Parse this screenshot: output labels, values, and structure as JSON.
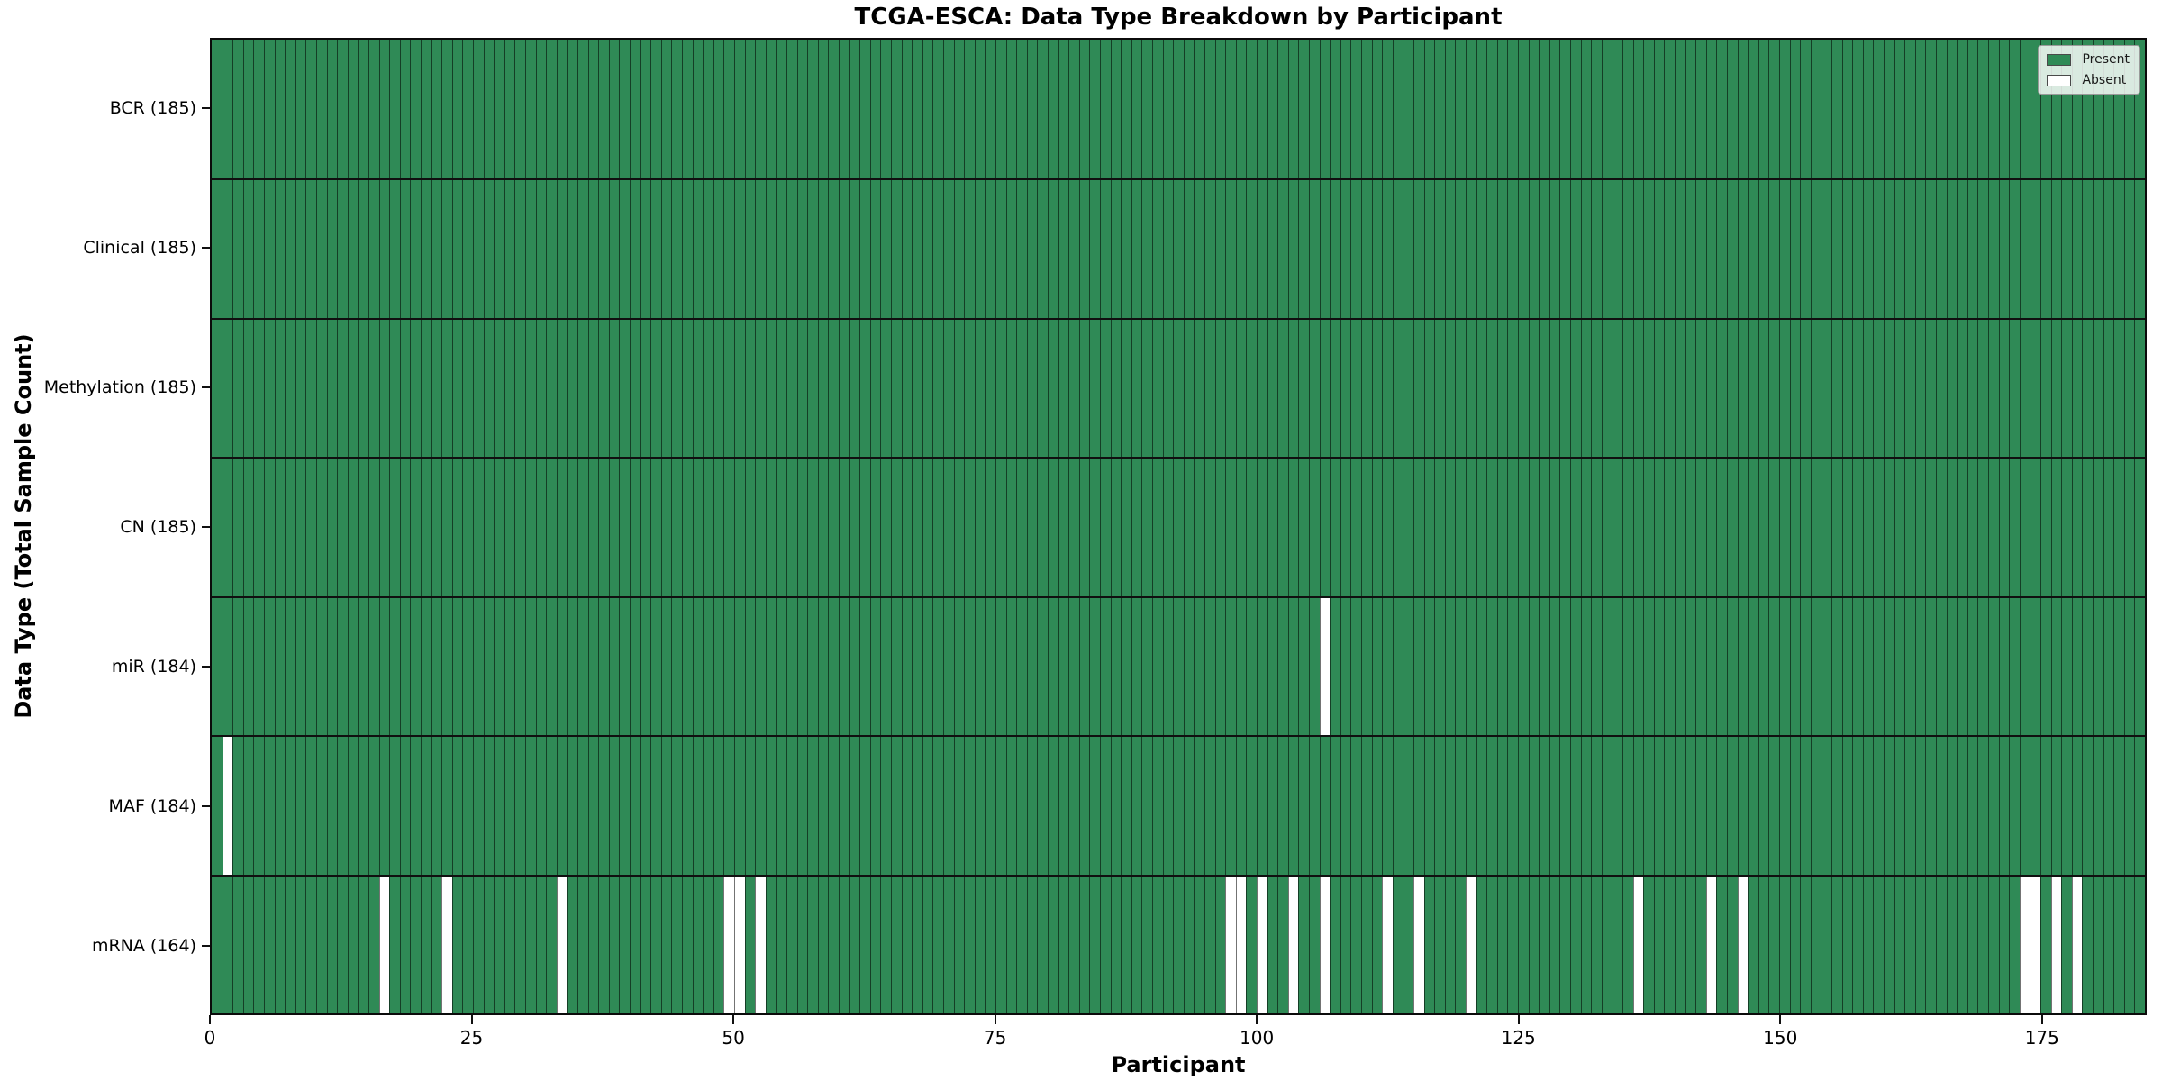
{
  "title": "TCGA-ESCA: Data Type Breakdown by Participant",
  "x_axis": {
    "label": "Participant",
    "ticks": [
      0,
      25,
      50,
      75,
      100,
      125,
      150,
      175
    ],
    "max": 185
  },
  "y_axis": {
    "label": "Data Type (Total Sample Count)"
  },
  "legend": [
    {
      "label": "Present",
      "color": "#2F8A56"
    },
    {
      "label": "Absent",
      "color": "#FFFFFF"
    }
  ],
  "participants": 185,
  "rows": [
    {
      "label": "BCR (185)",
      "name": "BCR",
      "count": 185,
      "absent": []
    },
    {
      "label": "Clinical (185)",
      "name": "Clinical",
      "count": 185,
      "absent": []
    },
    {
      "label": "Methylation (185)",
      "name": "Methylation",
      "count": 185,
      "absent": []
    },
    {
      "label": "CN (185)",
      "name": "CN",
      "count": 185,
      "absent": []
    },
    {
      "label": "miR (184)",
      "name": "miR",
      "count": 184,
      "absent": [
        106
      ]
    },
    {
      "label": "MAF (184)",
      "name": "MAF",
      "count": 184,
      "absent": [
        1
      ]
    },
    {
      "label": "mRNA (164)",
      "name": "mRNA",
      "count": 164,
      "absent": [
        16,
        22,
        33,
        49,
        50,
        52,
        97,
        98,
        100,
        103,
        106,
        112,
        115,
        120,
        136,
        143,
        146,
        173,
        174,
        176,
        178
      ]
    }
  ],
  "chart_data": {
    "type": "heatmap",
    "title": "TCGA-ESCA: Data Type Breakdown by Participant",
    "xlabel": "Participant",
    "ylabel": "Data Type (Total Sample Count)",
    "xlim": [
      0,
      185
    ],
    "x_ticks": [
      0,
      25,
      50,
      75,
      100,
      125,
      150,
      175
    ],
    "n_participants": 185,
    "grid": false,
    "legend_entries": [
      "Present",
      "Absent"
    ],
    "legend_position": "upper right",
    "colors": {
      "present": "#2F8A56",
      "absent": "#FFFFFF"
    },
    "categories": [
      "BCR (185)",
      "Clinical (185)",
      "Methylation (185)",
      "CN (185)",
      "miR (184)",
      "MAF (184)",
      "mRNA (164)"
    ],
    "series": [
      {
        "name": "BCR",
        "total_sample_count": 185,
        "absent_participant_indices": []
      },
      {
        "name": "Clinical",
        "total_sample_count": 185,
        "absent_participant_indices": []
      },
      {
        "name": "Methylation",
        "total_sample_count": 185,
        "absent_participant_indices": []
      },
      {
        "name": "CN",
        "total_sample_count": 185,
        "absent_participant_indices": []
      },
      {
        "name": "miR",
        "total_sample_count": 184,
        "absent_participant_indices": [
          106
        ]
      },
      {
        "name": "MAF",
        "total_sample_count": 184,
        "absent_participant_indices": [
          1
        ]
      },
      {
        "name": "mRNA",
        "total_sample_count": 164,
        "absent_participant_indices": [
          16,
          22,
          33,
          49,
          50,
          52,
          97,
          98,
          100,
          103,
          106,
          112,
          115,
          120,
          136,
          143,
          146,
          173,
          174,
          176,
          178
        ]
      }
    ]
  }
}
